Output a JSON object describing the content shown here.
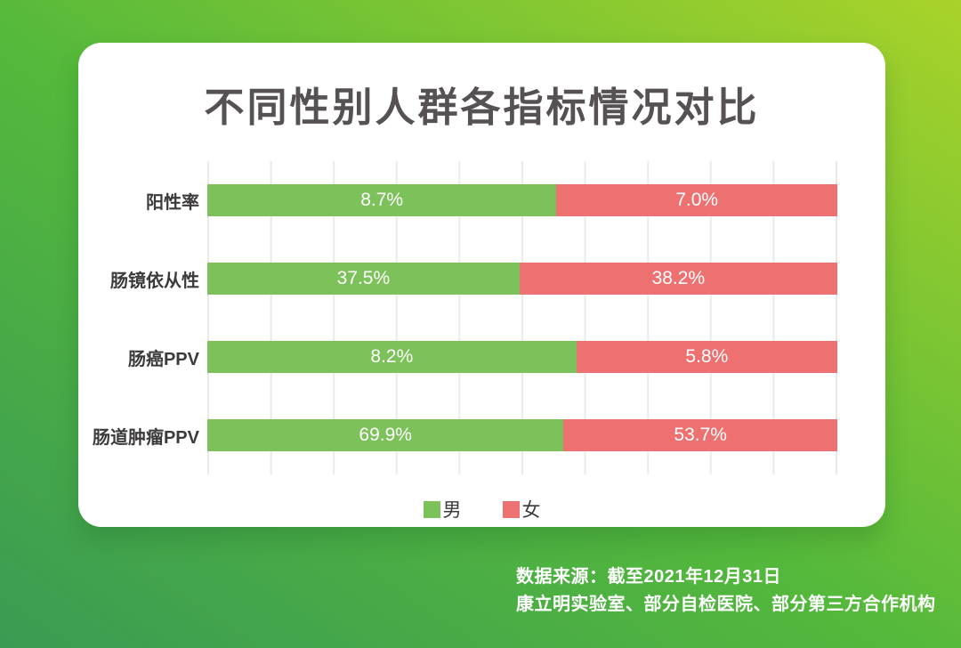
{
  "chart_data": {
    "type": "bar",
    "variant": "horizontal-stacked-100percent",
    "title": "不同性别人群各指标情况对比",
    "categories": [
      "阳性率",
      "肠镜依从性",
      "肠癌PPV",
      "肠道肿瘤PPV"
    ],
    "series": [
      {
        "name": "男",
        "color": "#7cc15a",
        "values": [
          8.7,
          37.5,
          8.2,
          69.9
        ]
      },
      {
        "name": "女",
        "color": "#ed7171",
        "values": [
          7.0,
          38.2,
          5.8,
          53.7
        ]
      }
    ],
    "value_label_format": "percent-one-decimal",
    "value_labels": [
      [
        "8.7%",
        "7.0%"
      ],
      [
        "37.5%",
        "38.2%"
      ],
      [
        "8.2%",
        "5.8%"
      ],
      [
        "69.9%",
        "53.7%"
      ]
    ],
    "grid": "vertical",
    "grid_divisions": 10,
    "legend_position": "bottom"
  },
  "legend": [
    {
      "label": "男",
      "color": "#7cc15a"
    },
    {
      "label": "女",
      "color": "#ed7171"
    }
  ],
  "footer": {
    "line1": "数据来源：截至2021年12月31日",
    "line2": "康立明实验室、部分自检医院、部分第三方合作机构"
  },
  "colors": {
    "male_bar": "#7cc15a",
    "female_bar": "#ed7171",
    "background_gradient_start": "#3a9b53",
    "background_gradient_end": "#a9d32a",
    "card": "#ffffff",
    "title_text": "#565254",
    "label_text": "#3c3a3b",
    "value_text": "#ffffff",
    "gridline": "#eaeaea"
  }
}
